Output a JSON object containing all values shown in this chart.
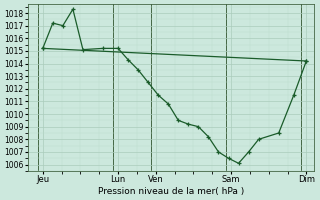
{
  "background_color": "#cce8dd",
  "grid_color_major": "#aaccbb",
  "grid_color_minor": "#bbddcc",
  "line_color": "#1a5c2a",
  "title": "Pression niveau de la mer( hPa )",
  "ylim": [
    1005.5,
    1018.7
  ],
  "yticks": [
    1006,
    1007,
    1008,
    1009,
    1010,
    1011,
    1012,
    1013,
    1014,
    1015,
    1016,
    1017,
    1018
  ],
  "xlim": [
    -0.1,
    11.3
  ],
  "xtick_labels": [
    "Jeu",
    "Lun",
    "Ven",
    "Sam",
    "Dim"
  ],
  "xtick_positions": [
    0.5,
    3.5,
    5.0,
    8.0,
    11.0
  ],
  "vline_positions": [
    0.3,
    3.3,
    4.8,
    7.8,
    10.8
  ],
  "line1_x": [
    0.5,
    0.9,
    1.3,
    1.7,
    2.1,
    2.9,
    3.5,
    3.9,
    4.3,
    4.7,
    5.1,
    5.5,
    5.9,
    6.3,
    6.7,
    7.1,
    7.5,
    7.9,
    8.3,
    8.7,
    9.1,
    9.9,
    10.5,
    11.0
  ],
  "line1_y": [
    1015.2,
    1017.2,
    1017.0,
    1018.3,
    1015.1,
    1015.2,
    1015.2,
    1014.3,
    1013.5,
    1012.5,
    1011.5,
    1010.8,
    1009.5,
    1009.2,
    1009.0,
    1008.2,
    1007.0,
    1006.5,
    1006.1,
    1007.0,
    1008.0,
    1008.5,
    1011.5,
    1014.2
  ],
  "line2_x": [
    0.5,
    11.0
  ],
  "line2_y": [
    1015.2,
    1014.2
  ],
  "ytick_fontsize": 5.5,
  "xtick_fontsize": 6.0,
  "title_fontsize": 6.5,
  "linewidth": 0.9,
  "markersize": 3.0
}
